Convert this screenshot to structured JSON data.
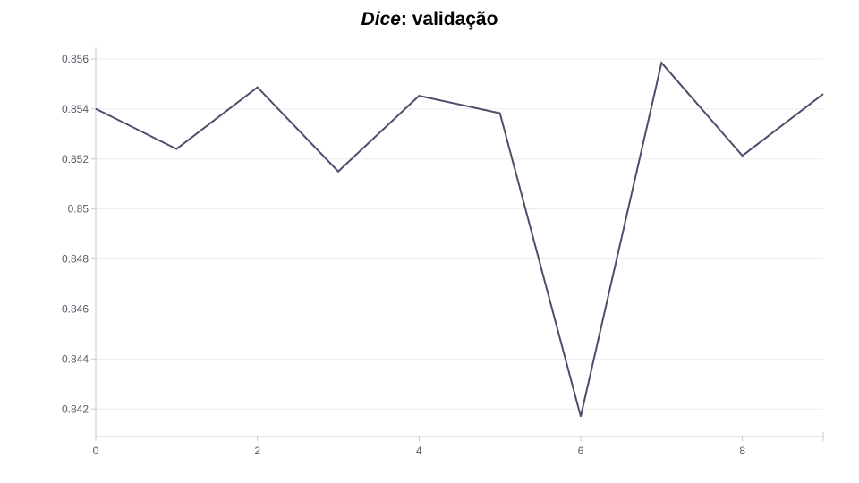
{
  "title": {
    "emphasis": "Dice",
    "rest": ": validação"
  },
  "chart_data": {
    "type": "line",
    "x": [
      0,
      1,
      2,
      3,
      4,
      5,
      6,
      7,
      8,
      9
    ],
    "series": [
      {
        "values": [
          0.85401,
          0.8524,
          0.85487,
          0.8515,
          0.85453,
          0.85383,
          0.8417,
          0.85585,
          0.85213,
          0.8546
        ]
      }
    ],
    "xticks": [
      "0",
      "2",
      "4",
      "6",
      "8"
    ],
    "xtick_values": [
      0,
      2,
      4,
      6,
      8
    ],
    "yticks": [
      "0.842",
      "0.844",
      "0.846",
      "0.848",
      "0.85",
      "0.852",
      "0.854",
      "0.856"
    ],
    "ytick_values": [
      0.842,
      0.844,
      0.846,
      0.848,
      0.85,
      0.852,
      0.854,
      0.856
    ],
    "xlim": [
      0,
      9
    ],
    "ylim": [
      0.8409,
      0.8565
    ],
    "grid": true,
    "line_color": "#4a4f6a",
    "grid_color": "#ebebeb",
    "axis_color": "#c8c8d8",
    "xlabel": "",
    "ylabel": ""
  }
}
